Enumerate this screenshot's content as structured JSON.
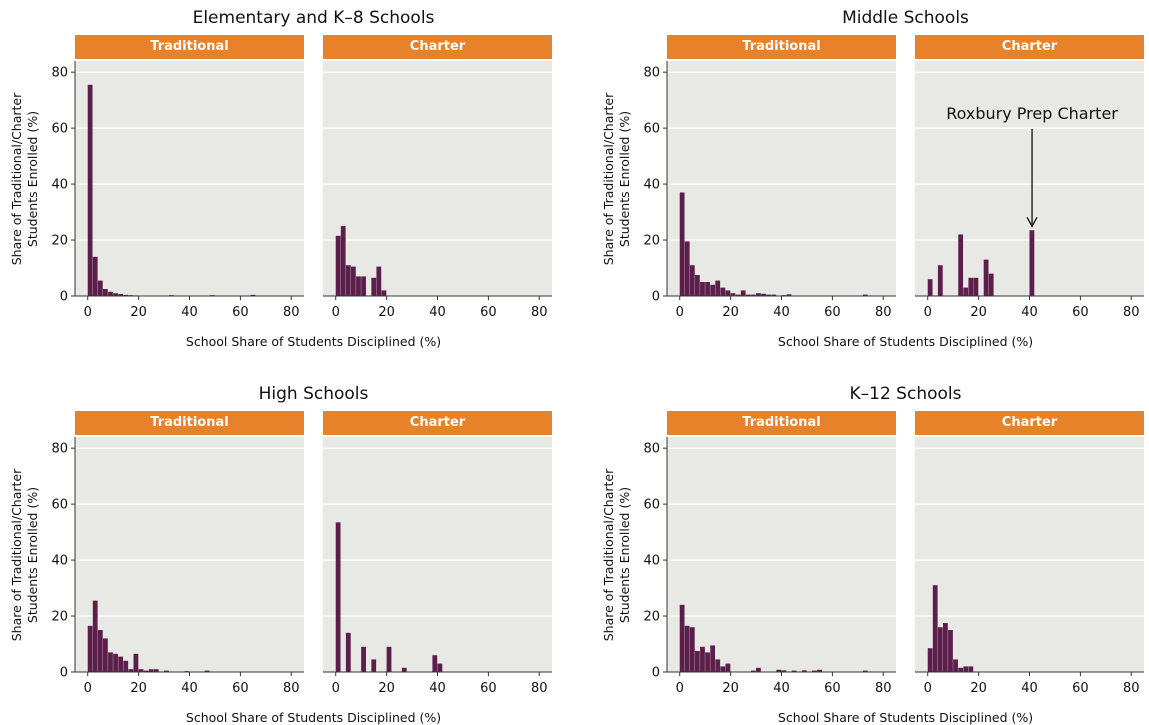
{
  "xlabel": "School Share of Students Disciplined (%)",
  "ylabel_lines": [
    "Share of Traditional/Charter",
    "Students Enrolled (%)"
  ],
  "colors": {
    "bar": "#5c1f4b",
    "strip": "#e8822a",
    "panel_bg": "#e8e8e4",
    "grid": "#ffffff"
  },
  "chart_data": [
    {
      "type": "bar",
      "title": "Elementary and K–8 Schools",
      "xlim": [
        -5,
        85
      ],
      "ylim": [
        0,
        84
      ],
      "xticks": [
        0,
        20,
        40,
        60,
        80
      ],
      "yticks": [
        0,
        20,
        40,
        60,
        80
      ],
      "xlabel": "School Share of Students Disciplined (%)",
      "ylabel": "Share of Traditional/Charter Students Enrolled (%)",
      "bin_width": 2,
      "panels": [
        {
          "facet": "Traditional",
          "bins": [
            {
              "x": 0,
              "y": 75.5
            },
            {
              "x": 2,
              "y": 14
            },
            {
              "x": 4,
              "y": 5.5
            },
            {
              "x": 6,
              "y": 2.5
            },
            {
              "x": 8,
              "y": 1.5
            },
            {
              "x": 10,
              "y": 1
            },
            {
              "x": 12,
              "y": 0.7
            },
            {
              "x": 14,
              "y": 0.4
            },
            {
              "x": 16,
              "y": 0.3
            },
            {
              "x": 18,
              "y": 0.2
            },
            {
              "x": 32,
              "y": 0.3
            },
            {
              "x": 48,
              "y": 0.3
            },
            {
              "x": 64,
              "y": 0.4
            }
          ]
        },
        {
          "facet": "Charter",
          "bins": [
            {
              "x": 0,
              "y": 21.5
            },
            {
              "x": 2,
              "y": 25
            },
            {
              "x": 4,
              "y": 11
            },
            {
              "x": 6,
              "y": 10.5
            },
            {
              "x": 8,
              "y": 7
            },
            {
              "x": 10,
              "y": 7
            },
            {
              "x": 14,
              "y": 6.5
            },
            {
              "x": 16,
              "y": 10.5
            },
            {
              "x": 18,
              "y": 2
            }
          ]
        }
      ]
    },
    {
      "type": "bar",
      "title": "Middle Schools",
      "xlim": [
        -5,
        85
      ],
      "ylim": [
        0,
        84
      ],
      "xticks": [
        0,
        20,
        40,
        60,
        80
      ],
      "yticks": [
        0,
        20,
        40,
        60,
        80
      ],
      "xlabel": "School Share of Students Disciplined (%)",
      "ylabel": "Share of Traditional/Charter Students Enrolled (%)",
      "bin_width": 2,
      "panels": [
        {
          "facet": "Traditional",
          "bins": [
            {
              "x": 0,
              "y": 37
            },
            {
              "x": 2,
              "y": 19.5
            },
            {
              "x": 4,
              "y": 11
            },
            {
              "x": 6,
              "y": 7.5
            },
            {
              "x": 8,
              "y": 5
            },
            {
              "x": 10,
              "y": 5
            },
            {
              "x": 12,
              "y": 4
            },
            {
              "x": 14,
              "y": 5.5
            },
            {
              "x": 16,
              "y": 3
            },
            {
              "x": 18,
              "y": 2
            },
            {
              "x": 20,
              "y": 1
            },
            {
              "x": 22,
              "y": 0.5
            },
            {
              "x": 24,
              "y": 2
            },
            {
              "x": 26,
              "y": 0.5
            },
            {
              "x": 28,
              "y": 0.5
            },
            {
              "x": 30,
              "y": 1
            },
            {
              "x": 32,
              "y": 0.8
            },
            {
              "x": 34,
              "y": 0.5
            },
            {
              "x": 36,
              "y": 0.5
            },
            {
              "x": 40,
              "y": 0.3
            },
            {
              "x": 42,
              "y": 0.6
            },
            {
              "x": 72,
              "y": 0.5
            }
          ]
        },
        {
          "facet": "Charter",
          "bins": [
            {
              "x": 0,
              "y": 6
            },
            {
              "x": 4,
              "y": 11
            },
            {
              "x": 12,
              "y": 22
            },
            {
              "x": 14,
              "y": 3
            },
            {
              "x": 16,
              "y": 6.5
            },
            {
              "x": 18,
              "y": 6.5
            },
            {
              "x": 22,
              "y": 13
            },
            {
              "x": 24,
              "y": 8
            },
            {
              "x": 40,
              "y": 23.5
            }
          ],
          "annotation": {
            "text": "Roxbury Prep Charter",
            "x": 41,
            "y": 23.5
          }
        }
      ]
    },
    {
      "type": "bar",
      "title": "High Schools",
      "xlim": [
        -5,
        85
      ],
      "ylim": [
        0,
        84
      ],
      "xticks": [
        0,
        20,
        40,
        60,
        80
      ],
      "yticks": [
        0,
        20,
        40,
        60,
        80
      ],
      "xlabel": "School Share of Students Disciplined (%)",
      "ylabel": "Share of Traditional/Charter Students Enrolled (%)",
      "bin_width": 2,
      "panels": [
        {
          "facet": "Traditional",
          "bins": [
            {
              "x": 0,
              "y": 16.5
            },
            {
              "x": 2,
              "y": 25.5
            },
            {
              "x": 4,
              "y": 15
            },
            {
              "x": 6,
              "y": 12
            },
            {
              "x": 8,
              "y": 7
            },
            {
              "x": 10,
              "y": 6.5
            },
            {
              "x": 12,
              "y": 5.5
            },
            {
              "x": 14,
              "y": 4
            },
            {
              "x": 16,
              "y": 1
            },
            {
              "x": 18,
              "y": 6.5
            },
            {
              "x": 20,
              "y": 1
            },
            {
              "x": 22,
              "y": 0.5
            },
            {
              "x": 24,
              "y": 1
            },
            {
              "x": 26,
              "y": 1
            },
            {
              "x": 30,
              "y": 0.5
            },
            {
              "x": 38,
              "y": 0.3
            },
            {
              "x": 46,
              "y": 0.5
            }
          ]
        },
        {
          "facet": "Charter",
          "bins": [
            {
              "x": 0,
              "y": 53.5
            },
            {
              "x": 4,
              "y": 14
            },
            {
              "x": 10,
              "y": 9
            },
            {
              "x": 14,
              "y": 4.5
            },
            {
              "x": 20,
              "y": 9
            },
            {
              "x": 26,
              "y": 1.5
            },
            {
              "x": 38,
              "y": 6
            },
            {
              "x": 40,
              "y": 3
            }
          ]
        }
      ]
    },
    {
      "type": "bar",
      "title": "K–12 Schools",
      "xlim": [
        -5,
        85
      ],
      "ylim": [
        0,
        84
      ],
      "xticks": [
        0,
        20,
        40,
        60,
        80
      ],
      "yticks": [
        0,
        20,
        40,
        60,
        80
      ],
      "xlabel": "School Share of Students Disciplined (%)",
      "ylabel": "Share of Traditional/Charter Students Enrolled (%)",
      "bin_width": 2,
      "panels": [
        {
          "facet": "Traditional",
          "bins": [
            {
              "x": 0,
              "y": 24
            },
            {
              "x": 2,
              "y": 16.5
            },
            {
              "x": 4,
              "y": 16
            },
            {
              "x": 6,
              "y": 7.5
            },
            {
              "x": 8,
              "y": 9
            },
            {
              "x": 10,
              "y": 7
            },
            {
              "x": 12,
              "y": 9.5
            },
            {
              "x": 14,
              "y": 4.5
            },
            {
              "x": 16,
              "y": 2
            },
            {
              "x": 18,
              "y": 3
            },
            {
              "x": 28,
              "y": 0.5
            },
            {
              "x": 30,
              "y": 1.5
            },
            {
              "x": 38,
              "y": 0.8
            },
            {
              "x": 40,
              "y": 0.6
            },
            {
              "x": 44,
              "y": 0.5
            },
            {
              "x": 48,
              "y": 0.6
            },
            {
              "x": 52,
              "y": 0.5
            },
            {
              "x": 54,
              "y": 0.8
            },
            {
              "x": 72,
              "y": 0.5
            }
          ]
        },
        {
          "facet": "Charter",
          "bins": [
            {
              "x": 0,
              "y": 8.5
            },
            {
              "x": 2,
              "y": 31
            },
            {
              "x": 4,
              "y": 16
            },
            {
              "x": 6,
              "y": 17.5
            },
            {
              "x": 8,
              "y": 15
            },
            {
              "x": 10,
              "y": 4.5
            },
            {
              "x": 12,
              "y": 1.5
            },
            {
              "x": 14,
              "y": 2
            },
            {
              "x": 16,
              "y": 2
            }
          ]
        }
      ]
    }
  ]
}
